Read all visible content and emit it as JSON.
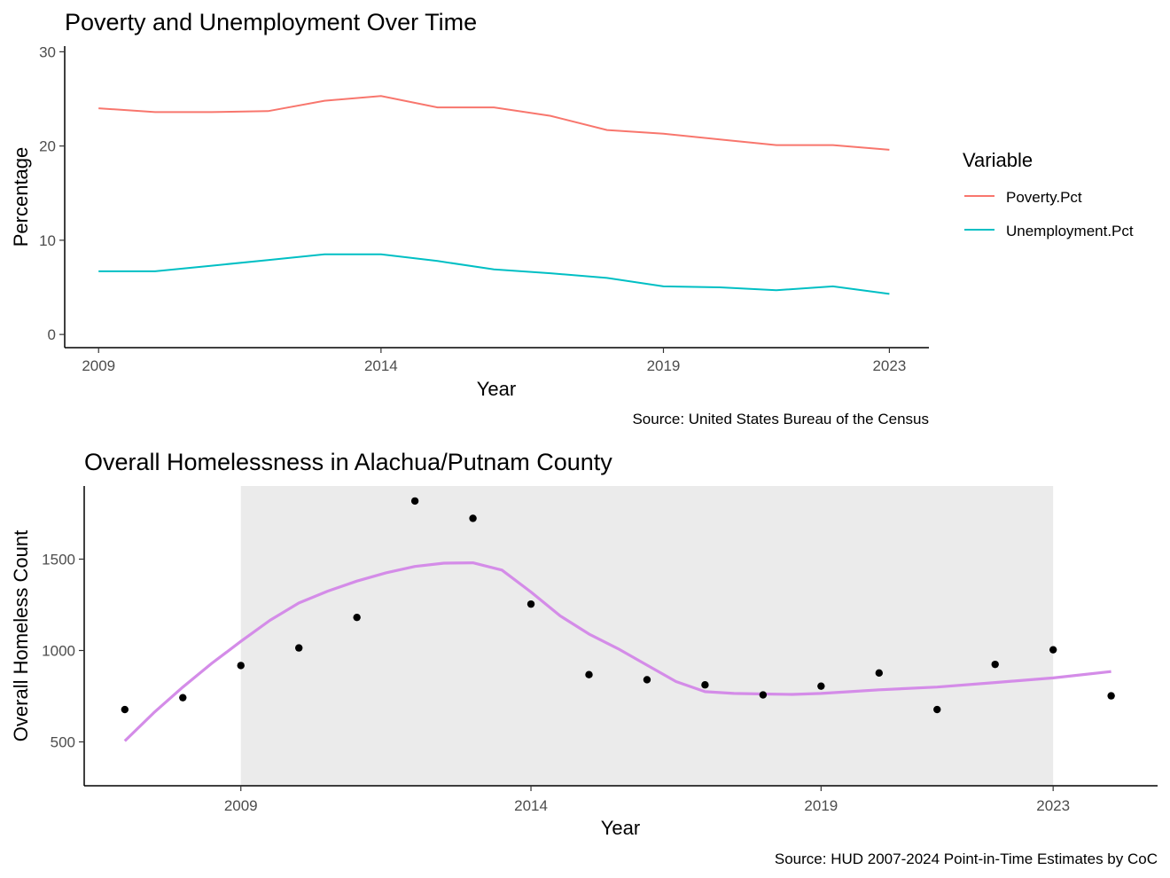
{
  "chart_data": [
    {
      "type": "line",
      "title": "Poverty and Unemployment Over Time",
      "xlabel": "Year",
      "ylabel": "Percentage",
      "caption": "Source: United States Bureau of the Census",
      "legend_title": "Variable",
      "legend_position": "right",
      "x": [
        2009,
        2010,
        2011,
        2012,
        2013,
        2014,
        2015,
        2016,
        2017,
        2018,
        2019,
        2020,
        2021,
        2022,
        2023
      ],
      "series": [
        {
          "name": "Poverty.Pct",
          "color": "#F8766D",
          "values": [
            24.0,
            23.6,
            23.6,
            23.7,
            24.8,
            25.3,
            24.1,
            24.1,
            23.2,
            21.7,
            21.3,
            20.7,
            20.1,
            20.1,
            19.6
          ]
        },
        {
          "name": "Unemployment.Pct",
          "color": "#00BFC4",
          "values": [
            6.7,
            6.7,
            7.3,
            7.9,
            8.5,
            8.5,
            7.8,
            6.9,
            6.5,
            6.0,
            5.1,
            5.0,
            4.7,
            5.1,
            4.3
          ]
        }
      ],
      "xlim": [
        2008.4,
        2023.7
      ],
      "ylim": [
        -1.4,
        30.6
      ],
      "x_ticks": [
        2009,
        2014,
        2019,
        2023
      ],
      "y_ticks": [
        0,
        10,
        20,
        30
      ],
      "grid": false
    },
    {
      "type": "scatter",
      "title": "Overall Homelessness in Alachua/Putnam County",
      "xlabel": "Year",
      "ylabel": "Overall Homeless Count",
      "caption": "Source: HUD 2007-2024 Point-in-Time Estimates by CoC",
      "shaded_band": {
        "from": 2009,
        "to": 2023,
        "color": "#EBEBEB"
      },
      "points": {
        "color": "#000000",
        "x": [
          2007,
          2008,
          2009,
          2010,
          2011,
          2012,
          2013,
          2014,
          2015,
          2016,
          2017,
          2018,
          2019,
          2020,
          2021,
          2022,
          2023,
          2024
        ],
        "y": [
          677,
          742,
          918,
          1014,
          1181,
          1818,
          1723,
          1254,
          868,
          840,
          812,
          757,
          805,
          877,
          677,
          924,
          1004,
          752
        ]
      },
      "smooth": {
        "color": "#D48CE8",
        "x": [
          2007,
          2007.5,
          2008,
          2008.5,
          2009,
          2009.5,
          2010,
          2010.5,
          2011,
          2011.5,
          2012,
          2012.5,
          2013,
          2013.5,
          2014,
          2014.5,
          2015,
          2015.5,
          2016,
          2016.5,
          2017,
          2017.5,
          2018,
          2018.5,
          2019,
          2019.5,
          2020,
          2021,
          2022,
          2023,
          2024
        ],
        "y": [
          505,
          660,
          800,
          930,
          1050,
          1165,
          1260,
          1325,
          1380,
          1425,
          1460,
          1478,
          1480,
          1440,
          1320,
          1190,
          1090,
          1010,
          920,
          830,
          775,
          765,
          762,
          760,
          765,
          775,
          785,
          800,
          825,
          850,
          885
        ]
      },
      "xlim": [
        2006.3,
        2024.8
      ],
      "ylim": [
        260,
        1900
      ],
      "x_ticks": [
        2009,
        2014,
        2019,
        2023
      ],
      "y_ticks": [
        500,
        1000,
        1500
      ],
      "grid": false
    }
  ]
}
